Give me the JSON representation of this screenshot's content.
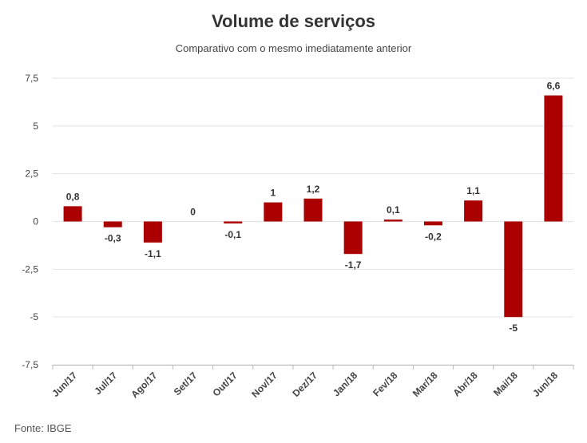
{
  "chart_data": {
    "type": "bar",
    "title": "Volume de serviços",
    "subtitle": "Comparativo com o mesmo imediatamente anterior",
    "source": "Fonte: IBGE",
    "categories": [
      "Jun/17",
      "Jul/17",
      "Ago/17",
      "Set/17",
      "Out/17",
      "Nov/17",
      "Dez/17",
      "Jan/18",
      "Fev/18",
      "Mar/18",
      "Abr/18",
      "Mai/18",
      "Jun/18"
    ],
    "values": [
      0.8,
      -0.3,
      -1.1,
      0,
      -0.1,
      1,
      1.2,
      -1.7,
      0.1,
      -0.2,
      1.1,
      -5,
      6.6
    ],
    "value_labels": [
      "0,8",
      "-0,3",
      "-1,1",
      "0",
      "-0,1",
      "1",
      "1,2",
      "-1,7",
      "0,1",
      "-0,2",
      "1,1",
      "-5",
      "6,6"
    ],
    "ylim": [
      -7.5,
      7.5
    ],
    "yticks": [
      7.5,
      5,
      2.5,
      0,
      -2.5,
      -5,
      -7.5
    ],
    "ytick_labels": [
      "7,5",
      "5",
      "2,5",
      "0",
      "-2,5",
      "-5",
      "-7,5"
    ],
    "bar_color": "#aa0000",
    "grid": true,
    "legend": "none"
  }
}
